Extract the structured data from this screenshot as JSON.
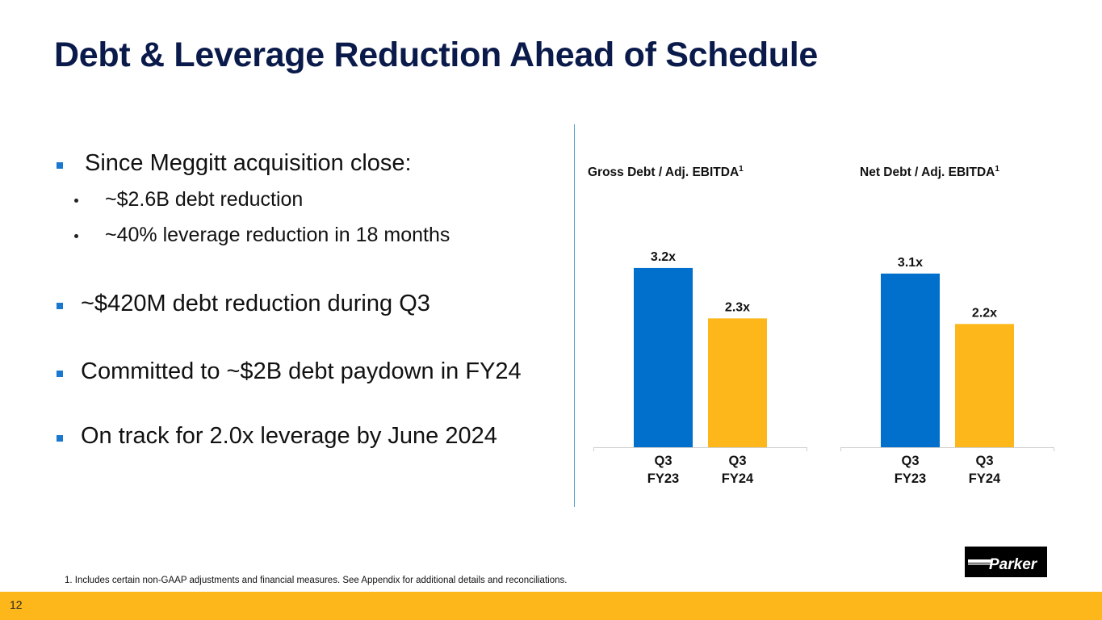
{
  "slide": {
    "title": "Debt & Leverage Reduction Ahead of Schedule",
    "page_number": "12",
    "footnote": "1. Includes certain non-GAAP adjustments and financial measures. See Appendix for additional details and reconciliations.",
    "logo_text": "Parker",
    "colors": {
      "title": "#0a1a4a",
      "bullet": "#1a78d0",
      "bar_prior": "#0070cc",
      "bar_current": "#fdb71b",
      "footer_band": "#fdb71b"
    }
  },
  "bullets": [
    {
      "text": "Since Meggitt acquisition close:",
      "sub": [
        "~$2.6B debt reduction",
        "~40% leverage reduction in 18 months"
      ]
    },
    {
      "text": "~$420M debt reduction during Q3",
      "sub": []
    },
    {
      "text": "Committed to ~$2B debt paydown in FY24",
      "sub": []
    },
    {
      "text": "On track for 2.0x leverage by June 2024",
      "sub": []
    }
  ],
  "chart_data": [
    {
      "type": "bar",
      "title": "Gross Debt / Adj. EBITDA",
      "title_superscript": "1",
      "categories": [
        "Q3\nFY23",
        "Q3\nFY24"
      ],
      "category_lines": [
        [
          "Q3",
          "FY23"
        ],
        [
          "Q3",
          "FY24"
        ]
      ],
      "values": [
        3.2,
        2.3
      ],
      "data_labels": [
        "3.2x",
        "2.3x"
      ],
      "colors": [
        "#0070cc",
        "#fdb71b"
      ],
      "xlabel": "",
      "ylabel": "",
      "ylim": [
        0,
        3.2
      ],
      "grid": false,
      "legend": "none"
    },
    {
      "type": "bar",
      "title": "Net Debt / Adj. EBITDA",
      "title_superscript": "1",
      "categories": [
        "Q3\nFY23",
        "Q3\nFY24"
      ],
      "category_lines": [
        [
          "Q3",
          "FY23"
        ],
        [
          "Q3",
          "FY24"
        ]
      ],
      "values": [
        3.1,
        2.2
      ],
      "data_labels": [
        "3.1x",
        "2.2x"
      ],
      "colors": [
        "#0070cc",
        "#fdb71b"
      ],
      "xlabel": "",
      "ylabel": "",
      "ylim": [
        0,
        3.2
      ],
      "grid": false,
      "legend": "none"
    }
  ]
}
